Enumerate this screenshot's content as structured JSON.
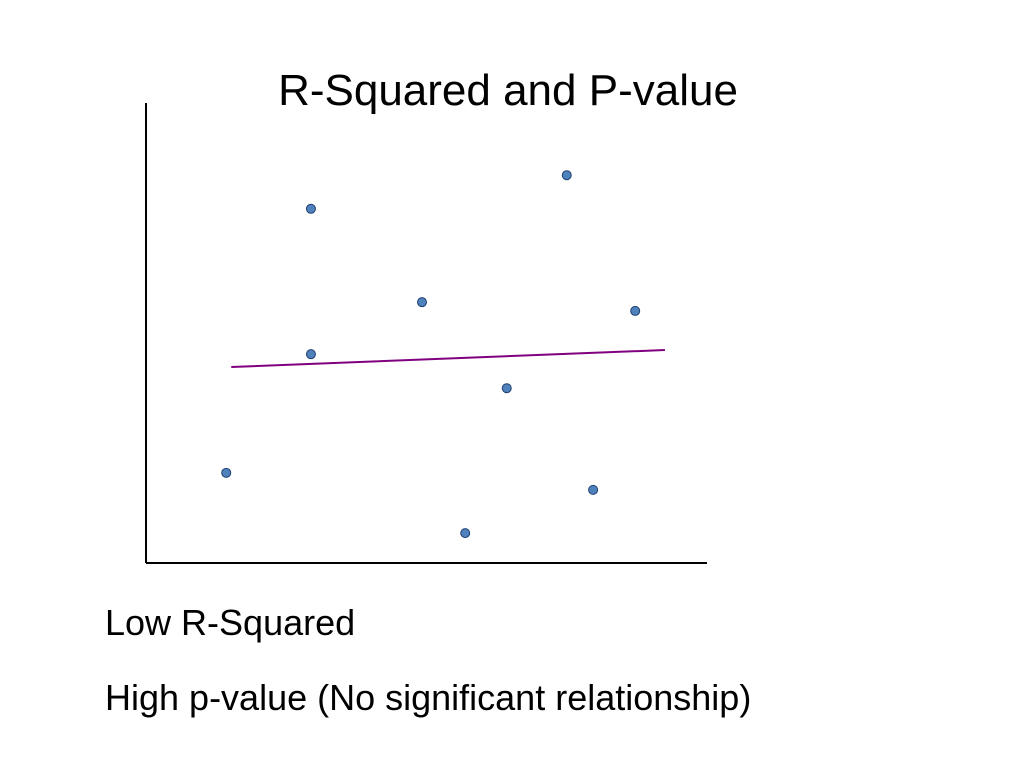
{
  "chart_data": {
    "type": "scatter",
    "title": "R-Squared and P-value",
    "x": [
      1.43,
      2.94,
      2.94,
      4.92,
      5.69,
      6.43,
      7.5,
      7.97,
      8.72
    ],
    "series": [
      {
        "color": "#4f81bd",
        "values": [
          1.96,
          7.7,
          4.54,
          5.67,
          0.65,
          3.8,
          8.43,
          1.59,
          5.48
        ]
      }
    ],
    "trend_line": {
      "x": [
        1.52,
        9.25
      ],
      "y": [
        4.26,
        4.63
      ],
      "color": "#800080"
    },
    "xlim": [
      0,
      10
    ],
    "ylim": [
      0,
      10
    ],
    "annotations": [
      "Low R-Squared",
      "High p-value (No significant relationship)"
    ]
  }
}
